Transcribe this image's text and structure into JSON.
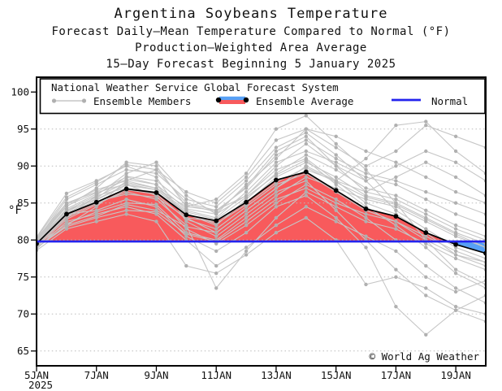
{
  "title": "Argentina Soybeans Temperature",
  "subtitle1": "Forecast Daily–Mean Temperature Compared to Normal (°F)",
  "subtitle2": "Production–Weighted Area Average",
  "subtitle3": "15–Day Forecast Beginning 5 January 2025",
  "watermark": "© World Ag Weather",
  "legend": {
    "header": "National Weather Service Global Forecast System",
    "items": [
      {
        "label": "Ensemble Members",
        "type": "gray-line-sample"
      },
      {
        "label": "Ensemble Average",
        "type": "red-blue-band-sample"
      },
      {
        "label": "Normal",
        "type": "blue-line-sample"
      }
    ]
  },
  "colors": {
    "above_normal_fill": "#f85a5c",
    "below_normal_fill": "#57a0f5",
    "normal_line": "#2323ee",
    "member_line": "#c6c6c6",
    "member_dot": "#b0b0b0",
    "average_line": "#000000",
    "grid": "#bbbbbb"
  },
  "chart_data": {
    "type": "line",
    "title": "Argentina Soybeans Temperature",
    "xlabel": "",
    "ylabel": "°F",
    "ylim": [
      63,
      102
    ],
    "yticks": [
      65,
      70,
      75,
      80,
      85,
      90,
      95,
      100
    ],
    "grid": "dotted-horizontal",
    "legend_position": "top-inside",
    "n_days": 16,
    "x_days": [
      "5JAN",
      "6JAN",
      "7JAN",
      "8JAN",
      "9JAN",
      "10JAN",
      "11JAN",
      "12JAN",
      "13JAN",
      "14JAN",
      "15JAN",
      "16JAN",
      "17JAN",
      "18JAN",
      "19JAN",
      "20JAN"
    ],
    "xtick_labels": [
      "5JAN",
      "7JAN",
      "9JAN",
      "11JAN",
      "13JAN",
      "15JAN",
      "17JAN",
      "19JAN"
    ],
    "xtick_day_indices": [
      0,
      2,
      4,
      6,
      8,
      10,
      12,
      14
    ],
    "x_year_label": "2025",
    "normal_value": 79.8,
    "ensemble_average": [
      79.5,
      83.5,
      85.1,
      86.9,
      86.4,
      83.4,
      82.6,
      85.1,
      88.1,
      89.2,
      86.7,
      84.2,
      83.2,
      81.0,
      79.4,
      78.2
    ],
    "ensemble_members": [
      [
        79.0,
        82.0,
        84.5,
        88.0,
        89.5,
        85.0,
        84.0,
        86.0,
        90.0,
        93.0,
        90.0,
        88.0,
        90.0,
        92.0,
        90.5,
        88.0
      ],
      [
        79.3,
        83.0,
        86.0,
        89.0,
        90.5,
        86.0,
        83.5,
        87.5,
        91.0,
        95.0,
        92.5,
        90.0,
        92.0,
        95.5,
        94.0,
        92.5
      ],
      [
        79.8,
        84.5,
        87.0,
        90.5,
        90.0,
        84.5,
        85.5,
        89.0,
        95.0,
        96.8,
        93.0,
        89.5,
        85.0,
        80.0,
        76.0,
        74.0
      ],
      [
        80.2,
        85.0,
        86.5,
        88.5,
        87.5,
        83.0,
        81.0,
        84.0,
        87.0,
        90.0,
        88.0,
        91.0,
        95.5,
        96.0,
        92.0,
        89.0
      ],
      [
        80.4,
        86.3,
        88.0,
        90.0,
        88.5,
        82.5,
        80.5,
        83.5,
        86.5,
        88.0,
        84.0,
        80.0,
        76.0,
        72.5,
        70.5,
        69.0
      ],
      [
        79.6,
        84.0,
        85.5,
        87.5,
        86.0,
        81.5,
        79.5,
        82.0,
        85.0,
        87.5,
        85.5,
        83.0,
        80.0,
        76.5,
        73.5,
        71.5
      ],
      [
        79.2,
        83.5,
        84.0,
        85.5,
        84.5,
        80.5,
        78.5,
        81.0,
        84.5,
        86.0,
        83.0,
        79.0,
        71.0,
        67.2,
        70.5,
        72.5
      ],
      [
        78.8,
        82.5,
        83.5,
        84.5,
        83.5,
        80.0,
        76.5,
        79.0,
        82.0,
        84.5,
        82.5,
        80.5,
        78.5,
        75.0,
        73.0,
        74.5
      ],
      [
        78.6,
        81.5,
        82.5,
        83.5,
        82.5,
        76.5,
        75.5,
        78.0,
        81.0,
        83.0,
        80.0,
        74.0,
        75.0,
        73.5,
        71.0,
        70.0
      ],
      [
        79.4,
        83.0,
        85.0,
        86.5,
        85.5,
        82.0,
        73.5,
        78.5,
        83.0,
        86.5,
        84.5,
        82.5,
        81.5,
        79.5,
        77.5,
        76.0
      ],
      [
        79.9,
        84.0,
        86.0,
        87.0,
        86.5,
        83.5,
        82.0,
        85.5,
        89.0,
        91.5,
        89.5,
        87.0,
        86.0,
        84.0,
        82.0,
        80.5
      ],
      [
        80.1,
        84.8,
        86.8,
        88.0,
        87.0,
        84.0,
        83.0,
        86.5,
        90.5,
        92.0,
        90.5,
        88.5,
        87.5,
        85.5,
        83.5,
        82.0
      ],
      [
        79.7,
        83.8,
        85.8,
        87.8,
        87.0,
        84.5,
        84.0,
        87.0,
        91.5,
        93.5,
        91.0,
        89.0,
        88.0,
        86.5,
        85.0,
        83.5
      ],
      [
        79.5,
        83.2,
        85.2,
        86.2,
        85.8,
        83.0,
        82.5,
        85.0,
        88.5,
        90.5,
        88.5,
        86.0,
        85.0,
        83.0,
        81.0,
        79.5
      ],
      [
        79.1,
        82.8,
        84.8,
        86.8,
        86.2,
        82.8,
        81.5,
        84.5,
        87.5,
        89.0,
        86.5,
        84.0,
        82.5,
        80.5,
        78.5,
        77.0
      ],
      [
        80.0,
        85.5,
        87.5,
        89.5,
        89.0,
        85.5,
        84.5,
        88.0,
        92.5,
        94.5,
        91.5,
        88.0,
        84.0,
        81.5,
        79.0,
        77.5
      ],
      [
        79.3,
        82.2,
        83.8,
        85.0,
        84.8,
        81.0,
        80.0,
        83.0,
        86.0,
        88.5,
        87.0,
        85.5,
        84.5,
        82.5,
        80.5,
        79.0
      ],
      [
        79.6,
        84.2,
        86.2,
        88.2,
        87.5,
        84.2,
        83.5,
        86.0,
        89.5,
        91.0,
        88.0,
        85.0,
        83.5,
        81.0,
        78.0,
        76.5
      ],
      [
        80.3,
        85.8,
        87.8,
        90.2,
        89.5,
        86.5,
        85.0,
        88.5,
        93.5,
        95.0,
        94.0,
        92.0,
        90.5,
        88.5,
        86.5,
        85.0
      ],
      [
        78.9,
        82.0,
        83.2,
        84.8,
        84.0,
        81.8,
        81.0,
        84.0,
        87.0,
        89.5,
        88.0,
        86.5,
        85.5,
        83.5,
        81.5,
        80.0
      ],
      [
        79.5,
        83.4,
        85.4,
        87.4,
        86.8,
        83.8,
        82.8,
        85.8,
        88.8,
        90.8,
        87.5,
        84.5,
        82.0,
        79.0,
        75.5,
        73.5
      ],
      [
        79.0,
        81.8,
        83.0,
        84.0,
        83.8,
        80.8,
        79.8,
        82.5,
        85.5,
        87.0,
        85.0,
        83.5,
        82.5,
        80.0,
        78.0,
        77.0
      ],
      [
        80.0,
        84.6,
        86.4,
        87.6,
        86.8,
        83.6,
        82.2,
        84.8,
        87.8,
        89.8,
        87.8,
        85.8,
        84.8,
        82.8,
        80.8,
        79.0
      ],
      [
        79.4,
        83.6,
        85.6,
        88.6,
        88.0,
        84.8,
        83.8,
        87.2,
        92.0,
        94.0,
        90.0,
        86.5,
        88.5,
        90.5,
        88.5,
        86.0
      ]
    ]
  }
}
